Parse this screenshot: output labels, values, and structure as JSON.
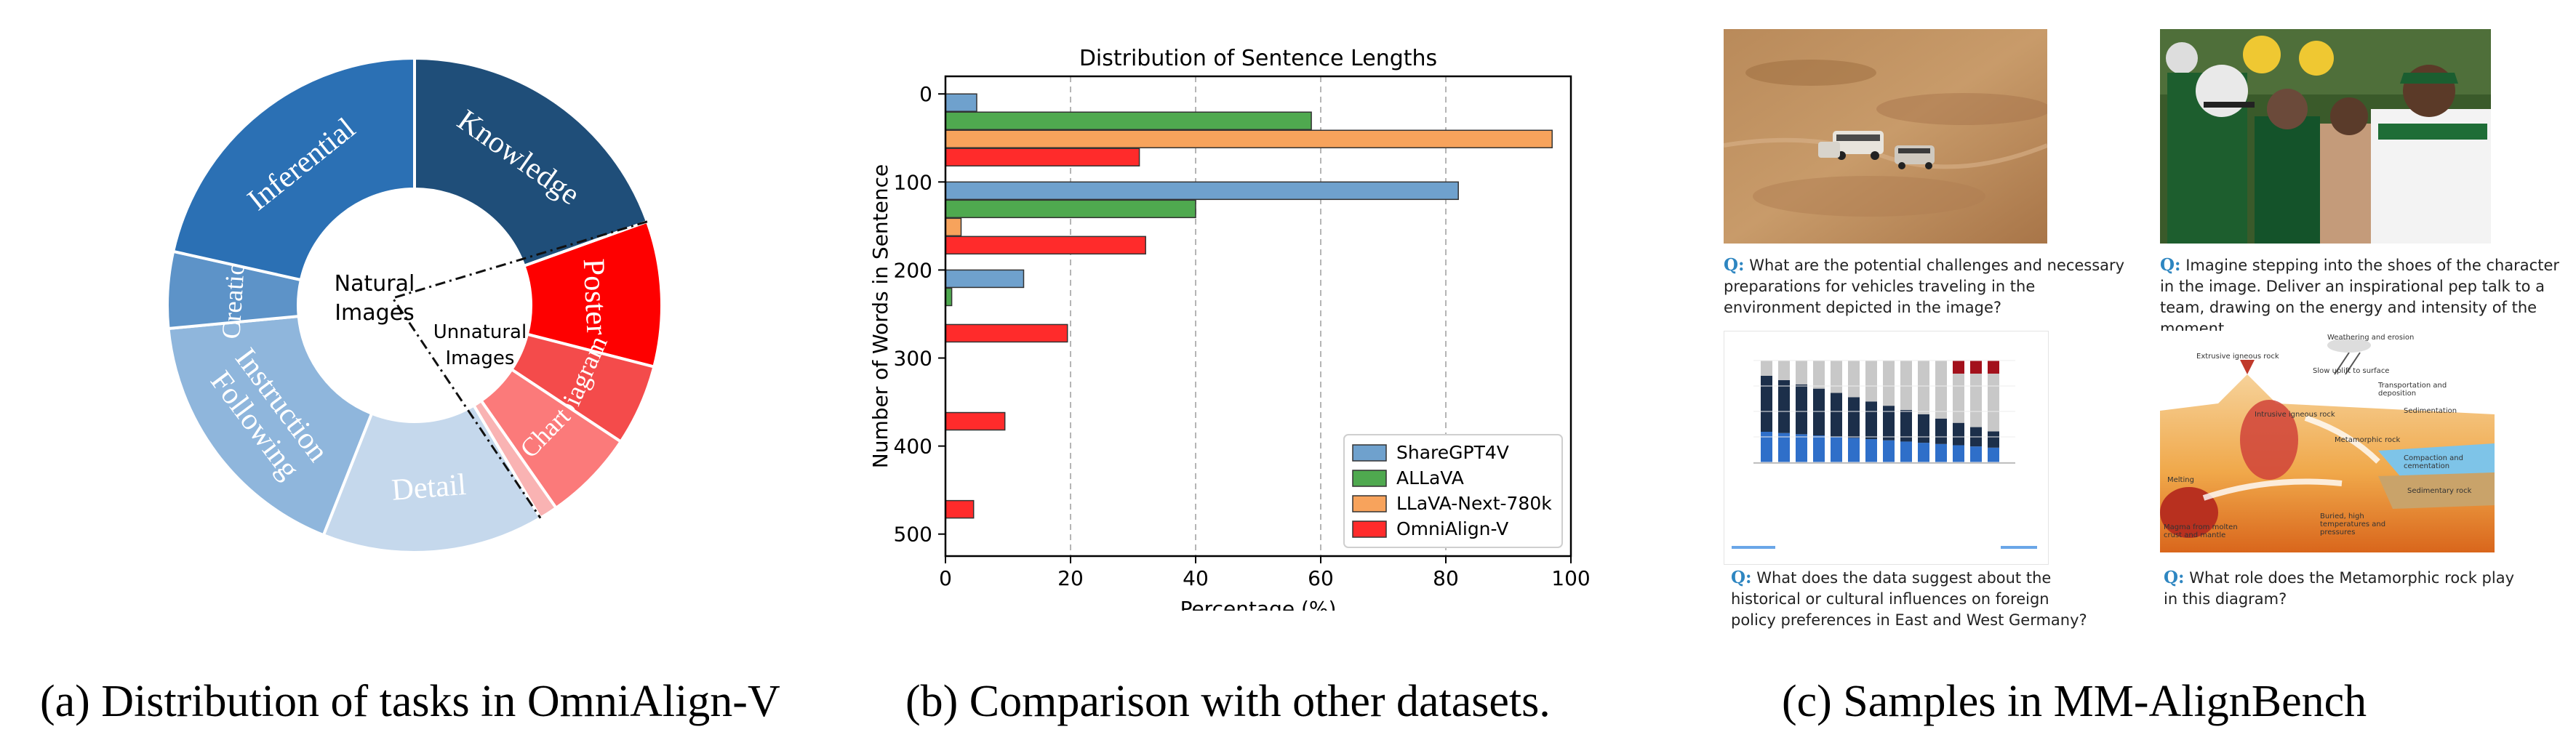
{
  "panel_a": {
    "inner_labels": {
      "natural": [
        "Natural",
        "Images"
      ],
      "unnatural": [
        "Unnatural",
        "Images"
      ]
    },
    "segments": [
      {
        "label": [
          "Knowledge"
        ],
        "value": 19.5,
        "color": "#1f4e79",
        "text_color": "#ffffff"
      },
      {
        "label": [
          "Poster"
        ],
        "value": 9.5,
        "color": "#fe0000",
        "text_color": "#ffffff"
      },
      {
        "label": [
          "Diagram"
        ],
        "value": 5.3,
        "color": "#f44b4b",
        "text_color": "#ffffff"
      },
      {
        "label": [
          "Chart"
        ],
        "value": 6.0,
        "color": "#fb7a7a",
        "text_color": "#ffffff"
      },
      {
        "label": [
          ""
        ],
        "value": 1.2,
        "color": "#f9b3b3",
        "text_color": "#ffffff"
      },
      {
        "label": [
          "Detail"
        ],
        "value": 14.5,
        "color": "#c5d8ec",
        "text_color": "#ffffff"
      },
      {
        "label": [
          "Instruction",
          "Following"
        ],
        "value": 17.5,
        "color": "#8fb6dc",
        "text_color": "#ffffff"
      },
      {
        "label": [
          "Creation"
        ],
        "value": 5.0,
        "color": "#5d93c8",
        "text_color": "#ffffff"
      },
      {
        "label": [
          "Inferential"
        ],
        "value": 21.5,
        "color": "#2b70b4",
        "text_color": "#ffffff"
      }
    ]
  },
  "chart_data": {
    "type": "bar",
    "orientation": "horizontal",
    "title": "Distribution of Sentence Lengths",
    "xlabel": "Percentage (%)",
    "ylabel": "Number of Words in Sentence",
    "xlim": [
      0,
      100
    ],
    "x_ticks": [
      0,
      20,
      40,
      60,
      80,
      100
    ],
    "y_ticks": [
      0,
      100,
      200,
      300,
      400,
      500
    ],
    "grid": "vertical dashed",
    "legend_position": "lower-right",
    "categories": [
      0,
      100,
      200,
      300,
      400,
      500
    ],
    "series": [
      {
        "name": "ShareGPT4V",
        "color": "#6fa1cd",
        "values": [
          5.0,
          82.0,
          12.5,
          0.0,
          0.0,
          0.0
        ]
      },
      {
        "name": "ALLaVA",
        "color": "#4fa94f",
        "values": [
          58.5,
          40.0,
          1.0,
          0.0,
          0.0,
          0.0
        ]
      },
      {
        "name": "LLaVA-Next-780k",
        "color": "#f7a35c",
        "values": [
          97.0,
          2.5,
          0.0,
          0.0,
          0.0,
          0.0
        ]
      },
      {
        "name": "OmniAlign-V",
        "color": "#ff2b2b",
        "values": [
          31.0,
          32.0,
          19.5,
          9.5,
          4.5,
          0.0
        ]
      }
    ]
  },
  "panel_c": {
    "samples": [
      {
        "q_mark": "Q:",
        "question": "What are the potential challenges and necessary preparations for vehicles traveling in the environment depicted in the image?",
        "thumb": "desert-vehicles-photo"
      },
      {
        "q_mark": "Q:",
        "question": "Imagine stepping into the shoes of the character in the image. Deliver an inspirational pep talk to a team, drawing on the energy and intensity of the moment.",
        "thumb": "football-team-photo"
      },
      {
        "q_mark": "Q:",
        "question": "What does the data suggest about the historical or cultural influences on foreign policy preferences in East and West Germany?",
        "thumb": "stacked-bar-chart-figure"
      },
      {
        "q_mark": "Q:",
        "question": "What role does the Metamorphic rock play in this diagram?",
        "thumb": "rock-cycle-diagram"
      }
    ],
    "diagram_labels": [
      "Weathering and erosion",
      "Extrusive igneous rock",
      "Slow uplift to surface",
      "Transportation and deposition",
      "Sedimentation",
      "Intrusive igneous rock",
      "Metamorphic rock",
      "Compaction and cementation",
      "Melting",
      "Sedimentary rock",
      "Buried, high temperatures and pressures",
      "Magma from molten crust and mantle"
    ]
  },
  "captions": {
    "a": "(a) Distribution of tasks in OmniAlign-V",
    "b": "(b) Comparison with other datasets.",
    "c": "(c) Samples in MM-AlignBench"
  }
}
